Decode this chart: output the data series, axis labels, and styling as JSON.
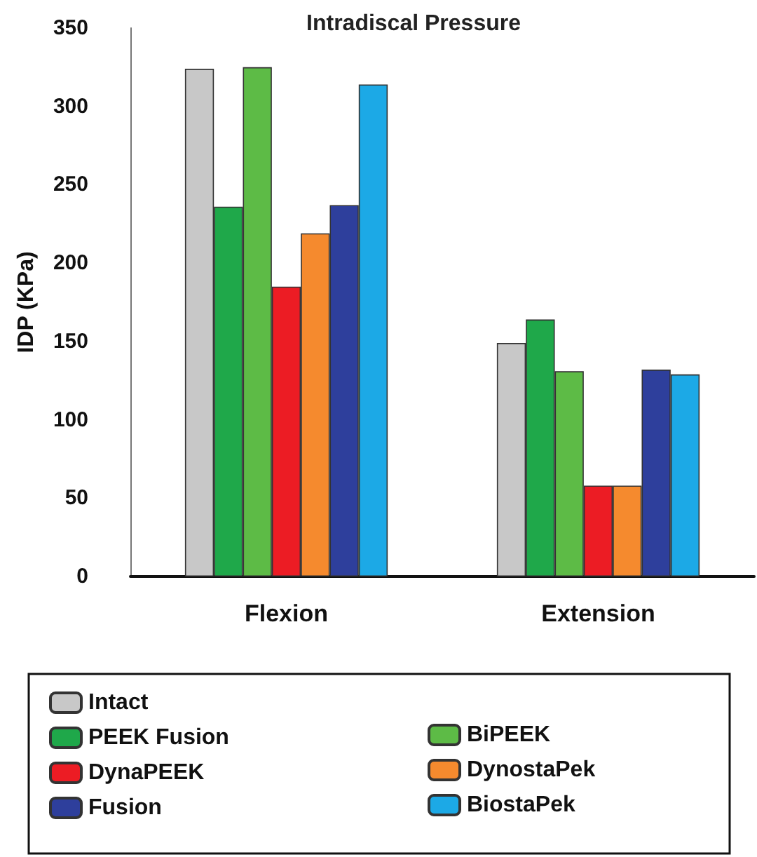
{
  "chart_data": {
    "type": "bar",
    "title": "Intradiscal Pressure",
    "ylabel": "IDP (KPa)",
    "categories": [
      "Flexion",
      "Extension"
    ],
    "series": [
      {
        "name": "Intact",
        "color": "#c8c8c8",
        "values": [
          324,
          149
        ]
      },
      {
        "name": "PEEK Fusion",
        "color": "#1fa84a",
        "values": [
          236,
          164
        ]
      },
      {
        "name": "BiPEEK",
        "color": "#5dbb46",
        "values": [
          325,
          131
        ]
      },
      {
        "name": "DynaPEEK",
        "color": "#ec1c24",
        "values": [
          185,
          58
        ]
      },
      {
        "name": "DynostaPek",
        "color": "#f58a2e",
        "values": [
          219,
          58
        ]
      },
      {
        "name": "Fusion",
        "color": "#2e3f9c",
        "values": [
          237,
          132
        ]
      },
      {
        "name": "BiostaPek",
        "color": "#1ca9e6",
        "values": [
          314,
          129
        ]
      }
    ],
    "ylim": [
      0,
      350
    ],
    "yticks": [
      0,
      50,
      100,
      150,
      200,
      250,
      300,
      350
    ],
    "grid": false,
    "legend": "bottom"
  }
}
